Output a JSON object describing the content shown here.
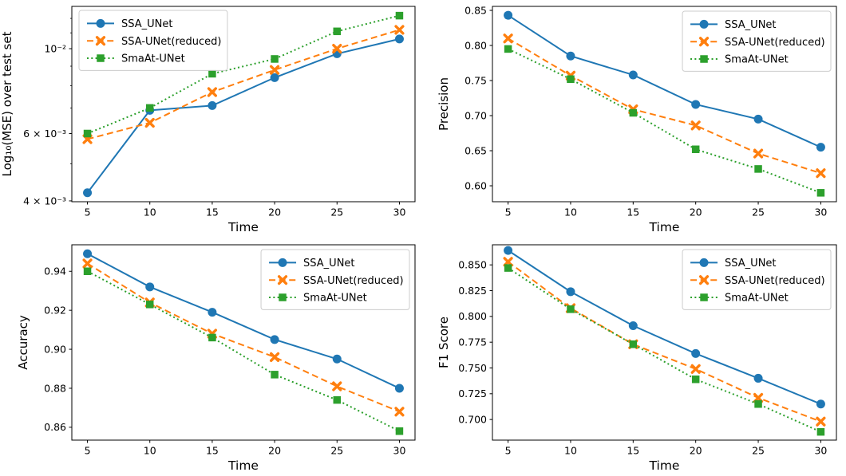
{
  "page": {
    "background": "#ffffff"
  },
  "colors": {
    "blue": "#1f77b4",
    "orange": "#ff7f0e",
    "green": "#2ca02c",
    "spine": "#000000",
    "tick": "#000000",
    "legend_border": "#cccccc",
    "legend_fill": "#ffffff"
  },
  "series_styles": {
    "SSA_UNet": {
      "color": "#1f77b4",
      "line": "solid",
      "marker": "circle"
    },
    "SSA-UNet(reduced)": {
      "color": "#ff7f0e",
      "line": "dashed",
      "marker": "x"
    },
    "SmaAt-UNet": {
      "color": "#2ca02c",
      "line": "dotted",
      "marker": "square"
    }
  },
  "legend_labels": [
    "SSA_UNet",
    "SSA-UNet(reduced)",
    "SmaAt-UNet"
  ],
  "chart_data": [
    {
      "id": "mse",
      "type": "line",
      "title": "",
      "xlabel": "Time",
      "ylabel": "Log₁₀(MSE) over test set",
      "yscale": "log",
      "xlim": [
        3.75,
        31.25
      ],
      "ylim": [
        0.00398,
        0.0129
      ],
      "x": [
        5,
        10,
        15,
        20,
        25,
        30
      ],
      "xticks": [
        {
          "value": 5,
          "label": "5"
        },
        {
          "value": 10,
          "label": "10"
        },
        {
          "value": 15,
          "label": "15"
        },
        {
          "value": 20,
          "label": "20"
        },
        {
          "value": 25,
          "label": "25"
        },
        {
          "value": 30,
          "label": "30"
        }
      ],
      "yticks": [
        {
          "value": 0.01,
          "label": "10⁻²"
        },
        {
          "value": 0.006,
          "label": "6 × 10⁻³"
        },
        {
          "value": 0.004,
          "label": "4 × 10⁻³"
        }
      ],
      "yticks_minor": [
        0.005,
        0.007,
        0.008,
        0.009,
        0.011,
        0.012
      ],
      "grid": false,
      "legend_pos": "upper-left",
      "series": [
        {
          "name": "SSA_UNet",
          "values": [
            0.0042,
            0.0069,
            0.0071,
            0.0084,
            0.0097,
            0.0106
          ]
        },
        {
          "name": "SSA-UNet(reduced)",
          "values": [
            0.0058,
            0.0064,
            0.0077,
            0.0088,
            0.01,
            0.0112
          ]
        },
        {
          "name": "SmaAt-UNet",
          "values": [
            0.006,
            0.007,
            0.0086,
            0.0094,
            0.0111,
            0.0122
          ]
        }
      ]
    },
    {
      "id": "precision",
      "type": "line",
      "title": "",
      "xlabel": "Time",
      "ylabel": "Precision",
      "yscale": "linear",
      "xlim": [
        3.75,
        31.25
      ],
      "ylim": [
        0.5773,
        0.8557
      ],
      "x": [
        5,
        10,
        15,
        20,
        25,
        30
      ],
      "xticks": [
        {
          "value": 5,
          "label": "5"
        },
        {
          "value": 10,
          "label": "10"
        },
        {
          "value": 15,
          "label": "15"
        },
        {
          "value": 20,
          "label": "20"
        },
        {
          "value": 25,
          "label": "25"
        },
        {
          "value": 30,
          "label": "30"
        }
      ],
      "yticks": [
        {
          "value": 0.85,
          "label": "0.85"
        },
        {
          "value": 0.8,
          "label": "0.80"
        },
        {
          "value": 0.75,
          "label": "0.75"
        },
        {
          "value": 0.7,
          "label": "0.70"
        },
        {
          "value": 0.65,
          "label": "0.65"
        },
        {
          "value": 0.6,
          "label": "0.60"
        }
      ],
      "yticks_minor": [],
      "grid": false,
      "legend_pos": "upper-right",
      "series": [
        {
          "name": "SSA_UNet",
          "values": [
            0.843,
            0.785,
            0.758,
            0.716,
            0.695,
            0.655
          ]
        },
        {
          "name": "SSA-UNet(reduced)",
          "values": [
            0.81,
            0.757,
            0.709,
            0.686,
            0.646,
            0.618
          ]
        },
        {
          "name": "SmaAt-UNet",
          "values": [
            0.795,
            0.752,
            0.704,
            0.652,
            0.624,
            0.59
          ]
        }
      ]
    },
    {
      "id": "accuracy",
      "type": "line",
      "title": "",
      "xlabel": "Time",
      "ylabel": "Accuracy",
      "yscale": "linear",
      "xlim": [
        3.75,
        31.25
      ],
      "ylim": [
        0.8534,
        0.9536
      ],
      "x": [
        5,
        10,
        15,
        20,
        25,
        30
      ],
      "xticks": [
        {
          "value": 5,
          "label": "5"
        },
        {
          "value": 10,
          "label": "10"
        },
        {
          "value": 15,
          "label": "15"
        },
        {
          "value": 20,
          "label": "20"
        },
        {
          "value": 25,
          "label": "25"
        },
        {
          "value": 30,
          "label": "30"
        }
      ],
      "yticks": [
        {
          "value": 0.94,
          "label": "0.94"
        },
        {
          "value": 0.92,
          "label": "0.92"
        },
        {
          "value": 0.9,
          "label": "0.90"
        },
        {
          "value": 0.88,
          "label": "0.88"
        },
        {
          "value": 0.86,
          "label": "0.86"
        }
      ],
      "yticks_minor": [],
      "grid": false,
      "legend_pos": "upper-right",
      "series": [
        {
          "name": "SSA_UNet",
          "values": [
            0.949,
            0.932,
            0.919,
            0.905,
            0.895,
            0.88
          ]
        },
        {
          "name": "SSA-UNet(reduced)",
          "values": [
            0.944,
            0.924,
            0.908,
            0.896,
            0.881,
            0.868
          ]
        },
        {
          "name": "SmaAt-UNet",
          "values": [
            0.94,
            0.923,
            0.906,
            0.887,
            0.874,
            0.858
          ]
        }
      ]
    },
    {
      "id": "f1-score",
      "type": "line",
      "title": "",
      "xlabel": "Time",
      "ylabel": "F1 Score",
      "yscale": "linear",
      "xlim": [
        3.75,
        31.25
      ],
      "ylim": [
        0.68,
        0.8695
      ],
      "x": [
        5,
        10,
        15,
        20,
        25,
        30
      ],
      "xticks": [
        {
          "value": 5,
          "label": "5"
        },
        {
          "value": 10,
          "label": "10"
        },
        {
          "value": 15,
          "label": "15"
        },
        {
          "value": 20,
          "label": "20"
        },
        {
          "value": 25,
          "label": "25"
        },
        {
          "value": 30,
          "label": "30"
        }
      ],
      "yticks": [
        {
          "value": 0.85,
          "label": "0.850"
        },
        {
          "value": 0.825,
          "label": "0.825"
        },
        {
          "value": 0.8,
          "label": "0.800"
        },
        {
          "value": 0.775,
          "label": "0.775"
        },
        {
          "value": 0.75,
          "label": "0.750"
        },
        {
          "value": 0.725,
          "label": "0.725"
        },
        {
          "value": 0.7,
          "label": "0.700"
        }
      ],
      "yticks_minor": [],
      "grid": false,
      "legend_pos": "upper-right",
      "series": [
        {
          "name": "SSA_UNet",
          "values": [
            0.864,
            0.824,
            0.791,
            0.764,
            0.74,
            0.715
          ]
        },
        {
          "name": "SSA-UNet(reduced)",
          "values": [
            0.853,
            0.808,
            0.773,
            0.749,
            0.721,
            0.698
          ]
        },
        {
          "name": "SmaAt-UNet",
          "values": [
            0.847,
            0.807,
            0.773,
            0.739,
            0.715,
            0.688
          ]
        }
      ]
    }
  ]
}
